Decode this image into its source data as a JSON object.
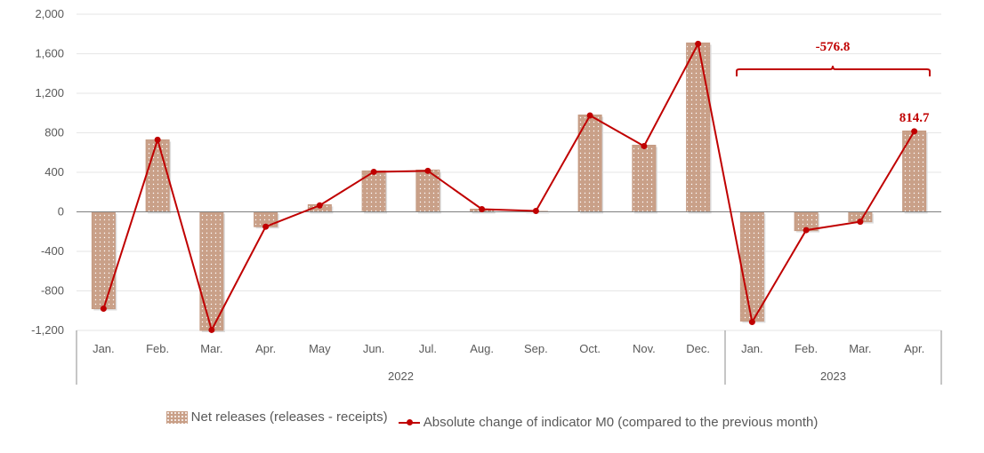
{
  "chart_data": {
    "type": "bar+line",
    "categories": [
      "Jan.",
      "Feb.",
      "Mar.",
      "Apr.",
      "May",
      "Jun.",
      "Jul.",
      "Aug.",
      "Sep.",
      "Oct.",
      "Nov.",
      "Dec.",
      "Jan.",
      "Feb.",
      "Mar.",
      "Apr."
    ],
    "groups": [
      {
        "label": "2022",
        "count": 12
      },
      {
        "label": "2023",
        "count": 4
      }
    ],
    "series": [
      {
        "name": "Net releases (releases - receipts)",
        "type": "bar",
        "color": "#c9a088",
        "values": [
          -980,
          728,
          -1200,
          -150,
          72,
          414,
          423,
          27,
          5,
          980,
          674,
          1709,
          -1105,
          -190,
          -100,
          818
        ]
      },
      {
        "name": "Absolute change of indicator M0 (compared to the previous month)",
        "type": "line",
        "color": "#c00000",
        "values": [
          -980,
          729,
          -1195,
          -150,
          65,
          405,
          415,
          27,
          9,
          975,
          665,
          1700,
          -1115,
          -185,
          -100,
          814.7
        ]
      }
    ],
    "yticks": [
      2000,
      1600,
      1200,
      800,
      400,
      0,
      -400,
      -800,
      -1200
    ],
    "ytick_labels": [
      "2,000",
      "1,600",
      "1,200",
      "800",
      "400",
      "0",
      "-400",
      "-800",
      "-1,200"
    ],
    "ylim": [
      -1200,
      2000
    ],
    "grid": true,
    "legend": "bottom",
    "annotations": {
      "bracket_label": "-576.8",
      "point_label": "814.7"
    }
  }
}
